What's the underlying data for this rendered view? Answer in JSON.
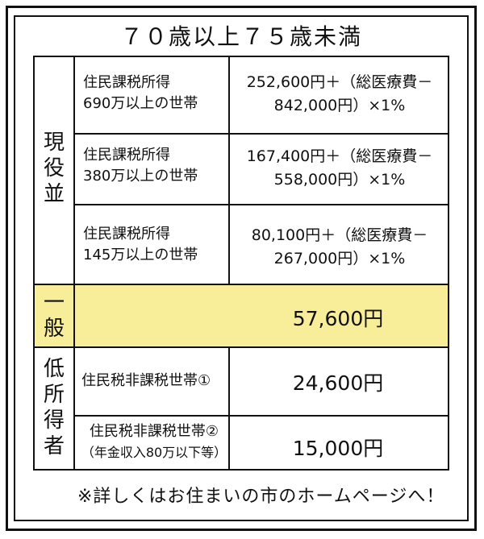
{
  "title": "７０歳以上７５歳未満",
  "groups": {
    "genekinami": [
      "現",
      "役",
      "並"
    ],
    "ippan": [
      "一",
      "般"
    ],
    "teishotoku": [
      "低",
      "所",
      "得",
      "者"
    ]
  },
  "rows": {
    "r1": {
      "income_line1": "住民課税所得",
      "income_line2": "690万以上の世帯",
      "formula_line1": "252,600円＋（総医療費－",
      "formula_line2": "842,000円）×1%"
    },
    "r2": {
      "income_line1": "住民課税所得",
      "income_line2": "380万以上の世帯",
      "formula_line1": "167,400円＋（総医療費－",
      "formula_line2": "558,000円）×1%"
    },
    "r3": {
      "income_line1": "住民課税所得",
      "income_line2": "145万以上の世帯",
      "formula_line1": "80,100円＋（総医療費－",
      "formula_line2": "267,000円）×1%"
    },
    "general": {
      "amount": "57,600円"
    },
    "low1": {
      "income": "住民税非課税世帯①",
      "amount": "24,600円"
    },
    "low2": {
      "income_line1": "住民税非課税世帯②",
      "income_line2": "（年金収入80万以下等）",
      "amount": "15,000円"
    }
  },
  "note": "※詳しくはお住まいの市のホームページへ！",
  "colors": {
    "highlight": "#f8ee99",
    "line": "#111111"
  }
}
